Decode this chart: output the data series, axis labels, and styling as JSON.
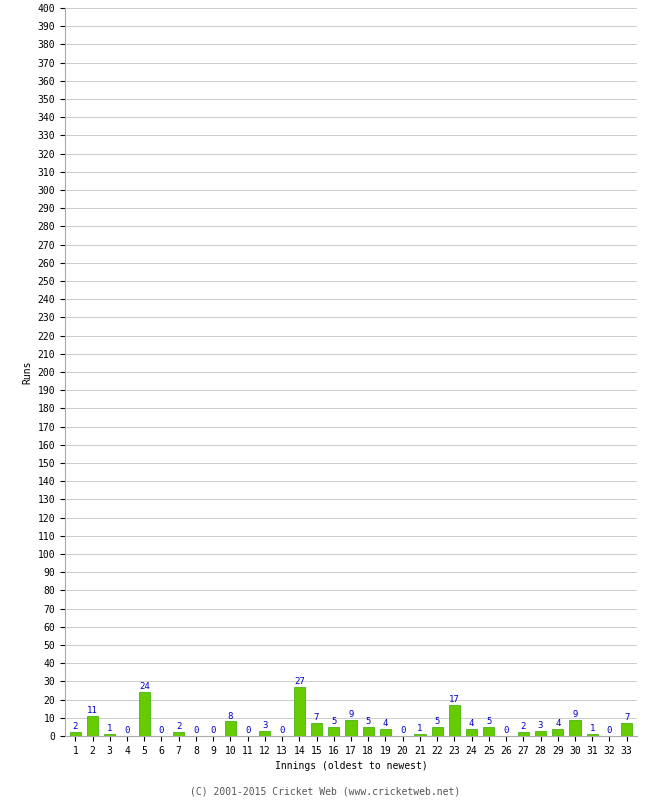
{
  "innings": [
    1,
    2,
    3,
    4,
    5,
    6,
    7,
    8,
    9,
    10,
    11,
    12,
    13,
    14,
    15,
    16,
    17,
    18,
    19,
    20,
    21,
    22,
    23,
    24,
    25,
    26,
    27,
    28,
    29,
    30,
    31,
    32,
    33
  ],
  "values": [
    2,
    11,
    1,
    0,
    24,
    0,
    2,
    0,
    0,
    8,
    0,
    3,
    0,
    27,
    7,
    5,
    9,
    5,
    4,
    0,
    1,
    5,
    17,
    4,
    5,
    0,
    2,
    3,
    4,
    9,
    1,
    0,
    7
  ],
  "bar_color": "#66cc00",
  "bar_edge_color": "#33aa00",
  "label_color": "#0000cc",
  "ylabel": "Runs",
  "xlabel": "Innings (oldest to newest)",
  "ylim": [
    0,
    400
  ],
  "yticks": [
    0,
    10,
    20,
    30,
    40,
    50,
    60,
    70,
    80,
    90,
    100,
    110,
    120,
    130,
    140,
    150,
    160,
    170,
    180,
    190,
    200,
    210,
    220,
    230,
    240,
    250,
    260,
    270,
    280,
    290,
    300,
    310,
    320,
    330,
    340,
    350,
    360,
    370,
    380,
    390,
    400
  ],
  "grid_color": "#cccccc",
  "bg_color": "#ffffff",
  "footer": "(C) 2001-2015 Cricket Web (www.cricketweb.net)",
  "label_fontsize": 6.5,
  "axis_fontsize": 7,
  "ylabel_fontsize": 7,
  "xlabel_fontsize": 7,
  "footer_fontsize": 7,
  "bar_width": 0.65
}
